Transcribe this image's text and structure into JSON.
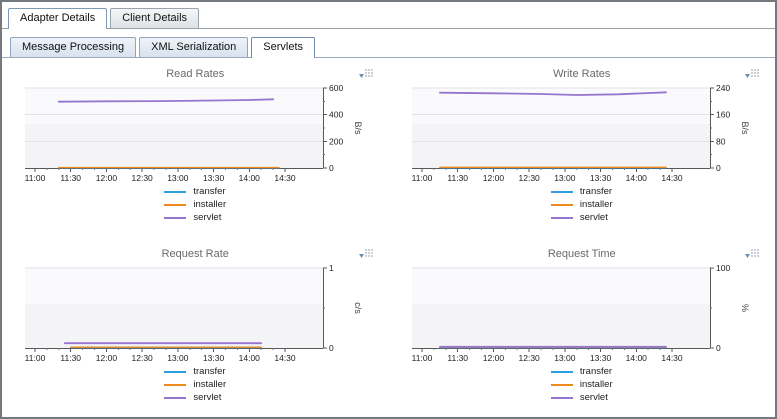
{
  "tabs": {
    "primary": [
      {
        "label": "Adapter Details",
        "active": true
      },
      {
        "label": "Client Details",
        "active": false
      }
    ],
    "secondary": [
      {
        "label": "Message Processing",
        "active": false
      },
      {
        "label": "XML Serialization",
        "active": false
      },
      {
        "label": "Servlets",
        "active": true
      }
    ]
  },
  "legend": [
    {
      "label": "transfer",
      "color": "#2b9fe0"
    },
    {
      "label": "installer",
      "color": "#ee8a1d"
    },
    {
      "label": "servlet",
      "color": "#9575cd"
    }
  ],
  "icons": {
    "chart_options": "list-with-dropdown-arrow"
  },
  "colors": {
    "axis": "#57575c",
    "plot_background": "#f4f4f7",
    "gridline": "#e2e2e9"
  },
  "chart_data": [
    {
      "type": "line",
      "title": "Read Rates",
      "ylabel": "B/s",
      "ylim": [
        0,
        600
      ],
      "yticks": [
        0,
        200,
        400,
        600
      ],
      "x_ticks": [
        "11:00",
        "11:30",
        "12:00",
        "12:30",
        "13:00",
        "13:30",
        "14:00",
        "14:30"
      ],
      "series": [
        {
          "name": "transfer",
          "points": [
            [
              "11:20",
              2
            ],
            [
              "14:25",
              2
            ]
          ]
        },
        {
          "name": "installer",
          "points": [
            [
              "11:20",
              4
            ],
            [
              "13:00",
              4
            ],
            [
              "14:25",
              4
            ]
          ]
        },
        {
          "name": "servlet",
          "points": [
            [
              "11:20",
              497
            ],
            [
              "12:00",
              500
            ],
            [
              "12:45",
              502
            ],
            [
              "13:30",
              506
            ],
            [
              "14:00",
              510
            ],
            [
              "14:20",
              515
            ]
          ]
        }
      ]
    },
    {
      "type": "line",
      "title": "Write Rates",
      "ylabel": "B/s",
      "ylim": [
        0,
        240
      ],
      "yticks": [
        0,
        80,
        160,
        240
      ],
      "x_ticks": [
        "11:00",
        "11:30",
        "12:00",
        "12:30",
        "13:00",
        "13:30",
        "14:00",
        "14:30"
      ],
      "series": [
        {
          "name": "transfer",
          "points": [
            [
              "11:15",
              1
            ],
            [
              "14:25",
              1
            ]
          ]
        },
        {
          "name": "installer",
          "points": [
            [
              "11:15",
              2
            ],
            [
              "14:25",
              2
            ]
          ]
        },
        {
          "name": "servlet",
          "points": [
            [
              "11:15",
              226
            ],
            [
              "12:00",
              224
            ],
            [
              "12:40",
              222
            ],
            [
              "13:10",
              219
            ],
            [
              "13:45",
              221
            ],
            [
              "14:25",
              227
            ]
          ]
        }
      ]
    },
    {
      "type": "line",
      "title": "Request Rate",
      "ylabel": "c/s",
      "ylim": [
        0,
        1
      ],
      "yticks": [
        0,
        1
      ],
      "x_ticks": [
        "11:00",
        "11:30",
        "12:00",
        "12:30",
        "13:00",
        "13:30",
        "14:00",
        "14:30"
      ],
      "series": [
        {
          "name": "transfer",
          "points": [
            [
              "11:30",
              0.005
            ],
            [
              "14:10",
              0.005
            ]
          ]
        },
        {
          "name": "installer",
          "points": [
            [
              "11:30",
              0.01
            ],
            [
              "14:10",
              0.01
            ]
          ]
        },
        {
          "name": "servlet",
          "points": [
            [
              "11:25",
              0.06
            ],
            [
              "14:10",
              0.06
            ]
          ]
        }
      ]
    },
    {
      "type": "line",
      "title": "Request Time",
      "ylabel": "%",
      "ylim": [
        0,
        100
      ],
      "yticks": [
        0,
        100
      ],
      "x_ticks": [
        "11:00",
        "11:30",
        "12:00",
        "12:30",
        "13:00",
        "13:30",
        "14:00",
        "14:30"
      ],
      "series": [
        {
          "name": "transfer",
          "points": [
            [
              "11:15",
              0.5
            ],
            [
              "14:25",
              0.5
            ]
          ]
        },
        {
          "name": "installer",
          "points": [
            [
              "11:15",
              1.0
            ],
            [
              "14:25",
              1.0
            ]
          ]
        },
        {
          "name": "servlet",
          "points": [
            [
              "11:15",
              1.5
            ],
            [
              "14:25",
              1.5
            ]
          ]
        }
      ]
    }
  ]
}
